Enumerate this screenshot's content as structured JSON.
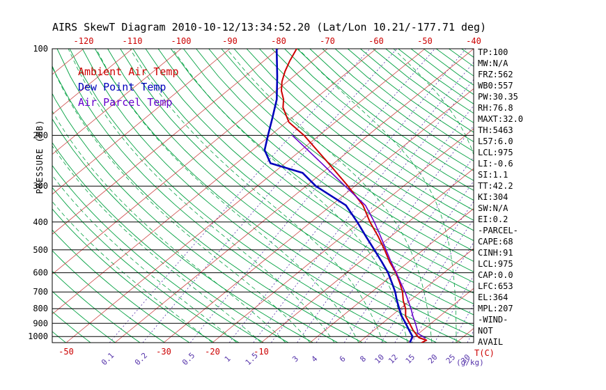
{
  "title": "AIRS SkewT Diagram 2010-10-12/13:34:52.20 (Lat/Lon 10.21/-177.71 deg)",
  "axes": {
    "pressure_label": "PRESSURE (MB)",
    "temp_unit_label": "T(C)",
    "mixing_unit_label": "(g/kg)"
  },
  "stats": [
    "TP:100",
    "MW:N/A",
    "FRZ:562",
    "WB0:557",
    "PW:30.35",
    "RH:76.8",
    "MAXT:32.0",
    "TH:5463",
    "L57:6.0",
    "LCL:975",
    "LI:-0.6",
    "SI:1.1",
    "TT:42.2",
    "KI:304",
    "SW:N/A",
    "EI:0.2",
    "-PARCEL-",
    "CAPE:68",
    "CINH:91",
    "LCL:975",
    "CAP:0.0",
    "LFC:653",
    "EL:364",
    "MPL:207",
    "-WIND-",
    "NOT",
    "AVAIL"
  ],
  "chart_data": {
    "type": "skewt",
    "pressure_scale": "log",
    "pressure_range": [
      100,
      1050
    ],
    "pressure_ticks": [
      100,
      200,
      300,
      400,
      500,
      600,
      700,
      800,
      900,
      1000
    ],
    "top_temp_ticks_c": [
      -120,
      -110,
      -100,
      -90,
      -80,
      -70,
      -60,
      -50,
      -40
    ],
    "bottom_temp_ticks_c": [
      -50,
      -30,
      -20,
      -10
    ],
    "isotherm_step_c": 10,
    "mixing_ratio_labels": [
      "0.1",
      "0.2",
      "0.5",
      "1",
      "1.5",
      "3",
      "4",
      "6",
      "8",
      "10",
      "12",
      "15",
      "20",
      "25",
      "30"
    ],
    "mixing_ratio_lines_g_kg": [
      0.1,
      0.2,
      0.5,
      1,
      1.5,
      2,
      3,
      4,
      6,
      8,
      10,
      12,
      15,
      20,
      25,
      30
    ],
    "colors": {
      "ambient": "#cc0000",
      "dew_point": "#0000bb",
      "parcel": "#6600cc",
      "isotherm": "#cc4444",
      "adiabat_green": "#00a040",
      "mixing_purple": "#5533aa",
      "grid_black": "#000000",
      "tick_red": "#cc0000"
    },
    "series": [
      {
        "name": "Ambient Air Temp",
        "color": "#cc0000",
        "points_p_t": [
          [
            1050,
            22.9
          ],
          [
            1030,
            23.3
          ],
          [
            1010,
            21.2
          ],
          [
            1000,
            20.6
          ],
          [
            950,
            18.0
          ],
          [
            900,
            15.6
          ],
          [
            850,
            13.0
          ],
          [
            800,
            11.1
          ],
          [
            750,
            8.6
          ],
          [
            700,
            6.3
          ],
          [
            650,
            3.4
          ],
          [
            600,
            0.1
          ],
          [
            550,
            -3.9
          ],
          [
            500,
            -7.9
          ],
          [
            450,
            -12.5
          ],
          [
            400,
            -17.9
          ],
          [
            350,
            -23.5
          ],
          [
            300,
            -31.4
          ],
          [
            250,
            -41.1
          ],
          [
            200,
            -53.1
          ],
          [
            180,
            -59.5
          ],
          [
            160,
            -64.4
          ],
          [
            150,
            -66.3
          ],
          [
            140,
            -68.9
          ],
          [
            130,
            -71.1
          ],
          [
            120,
            -73.0
          ],
          [
            110,
            -74.7
          ],
          [
            100,
            -76.3
          ]
        ]
      },
      {
        "name": "Dew Point Temp",
        "color": "#0000bb",
        "points_p_t": [
          [
            1050,
            20.5
          ],
          [
            1000,
            19.5
          ],
          [
            950,
            17.2
          ],
          [
            900,
            14.8
          ],
          [
            850,
            12.2
          ],
          [
            800,
            9.8
          ],
          [
            750,
            7.3
          ],
          [
            700,
            4.8
          ],
          [
            650,
            1.8
          ],
          [
            600,
            -1.5
          ],
          [
            550,
            -5.5
          ],
          [
            500,
            -10.0
          ],
          [
            450,
            -15.0
          ],
          [
            400,
            -20.5
          ],
          [
            350,
            -27.0
          ],
          [
            300,
            -38.0
          ],
          [
            270,
            -44.0
          ],
          [
            250,
            -53.0
          ],
          [
            225,
            -57.5
          ],
          [
            200,
            -60.5
          ],
          [
            175,
            -63.8
          ],
          [
            150,
            -67.7
          ],
          [
            125,
            -73.3
          ],
          [
            100,
            -80.4
          ]
        ]
      },
      {
        "name": "Air Parcel Temp",
        "color": "#6600cc",
        "points_p_t": [
          [
            1013,
            22.5
          ],
          [
            975,
            19.8
          ],
          [
            950,
            18.9
          ],
          [
            900,
            16.8
          ],
          [
            850,
            14.5
          ],
          [
            800,
            12.2
          ],
          [
            750,
            9.6
          ],
          [
            700,
            6.8
          ],
          [
            650,
            3.6
          ],
          [
            600,
            0.2
          ],
          [
            550,
            -3.6
          ],
          [
            500,
            -7.6
          ],
          [
            450,
            -12.0
          ],
          [
            400,
            -17.0
          ],
          [
            350,
            -23.0
          ],
          [
            300,
            -32.0
          ],
          [
            250,
            -42.5
          ],
          [
            200,
            -55.5
          ]
        ]
      }
    ]
  }
}
